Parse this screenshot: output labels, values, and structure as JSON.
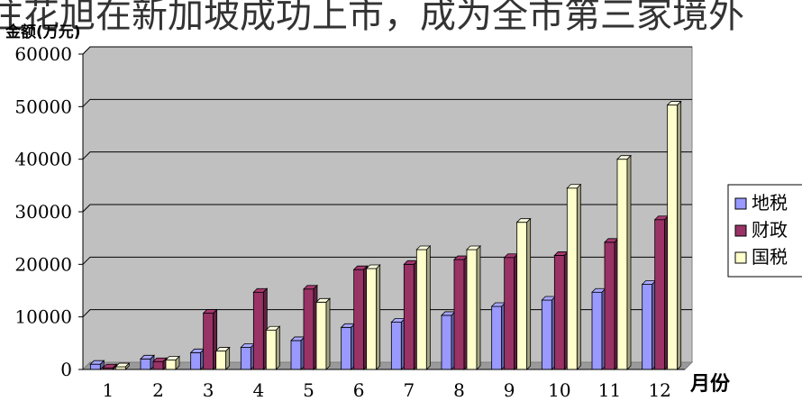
{
  "banner_text": "注花旭在新加坡成功上市，成为全市第三家境外",
  "chart_data": {
    "type": "bar",
    "title": "",
    "xlabel": "月份",
    "ylabel": "金额(万元)",
    "ylim": [
      0,
      60000
    ],
    "yticks": [
      0,
      10000,
      20000,
      30000,
      40000,
      50000,
      60000
    ],
    "ytick_labels": [
      "0",
      "10000",
      "20000",
      "30000",
      "40000",
      "50000",
      "60000"
    ],
    "grid": true,
    "legend_position": "right",
    "categories": [
      "1",
      "2",
      "3",
      "4",
      "5",
      "6",
      "7",
      "8",
      "9",
      "10",
      "11",
      "12"
    ],
    "series": [
      {
        "name": "地税",
        "color": "#9999ff",
        "values": [
          1000,
          2000,
          3200,
          4200,
          5500,
          8000,
          9000,
          10300,
          12000,
          13200,
          14700,
          16200
        ]
      },
      {
        "name": "财政",
        "color": "#993366",
        "values": [
          300,
          1500,
          10700,
          14700,
          15300,
          19000,
          20000,
          20900,
          21300,
          21700,
          24200,
          28500
        ]
      },
      {
        "name": "国税",
        "color": "#ffffcc",
        "values": [
          500,
          1800,
          3500,
          7500,
          12800,
          19200,
          22800,
          22800,
          28000,
          34500,
          40000,
          50300
        ]
      }
    ]
  }
}
